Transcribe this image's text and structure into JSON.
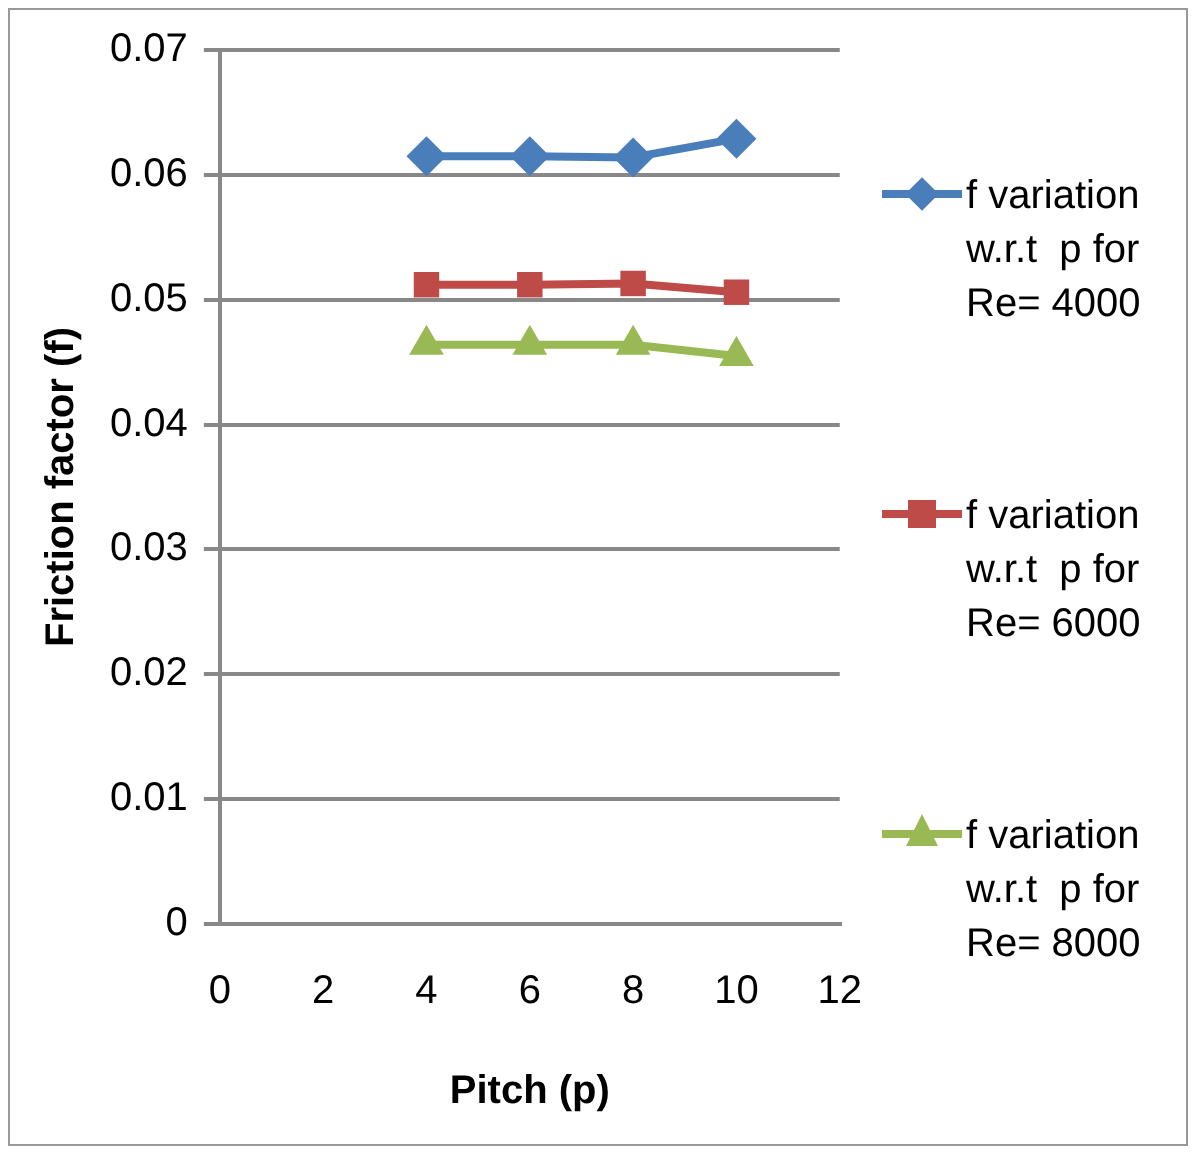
{
  "chart_data": {
    "type": "line",
    "xlabel": "Pitch (p)",
    "ylabel": "Friction factor (f)",
    "x": [
      4,
      6,
      8,
      10
    ],
    "xlim": [
      0,
      12
    ],
    "xticks": [
      0,
      2,
      4,
      6,
      8,
      10,
      12
    ],
    "ylim": [
      0,
      0.07
    ],
    "yticks": [
      0,
      0.01,
      0.02,
      0.03,
      0.04,
      0.05,
      0.06,
      0.07
    ],
    "grid": "y",
    "legend": "right",
    "line_style": "solid",
    "series": [
      {
        "name": "f variation w.r.t  p for Re= 4000",
        "color": "#4a7ebb",
        "marker": "diamond",
        "values": [
          0.0615,
          0.0615,
          0.0614,
          0.0629
        ]
      },
      {
        "name": "f variation w.r.t  p for Re= 6000",
        "color": "#be4b48",
        "marker": "square",
        "values": [
          0.0512,
          0.0512,
          0.0513,
          0.0506
        ]
      },
      {
        "name": "f variation w.r.t  p for Re= 8000",
        "color": "#98b954",
        "marker": "triangle",
        "values": [
          0.0464,
          0.0464,
          0.0464,
          0.0455
        ]
      }
    ]
  }
}
